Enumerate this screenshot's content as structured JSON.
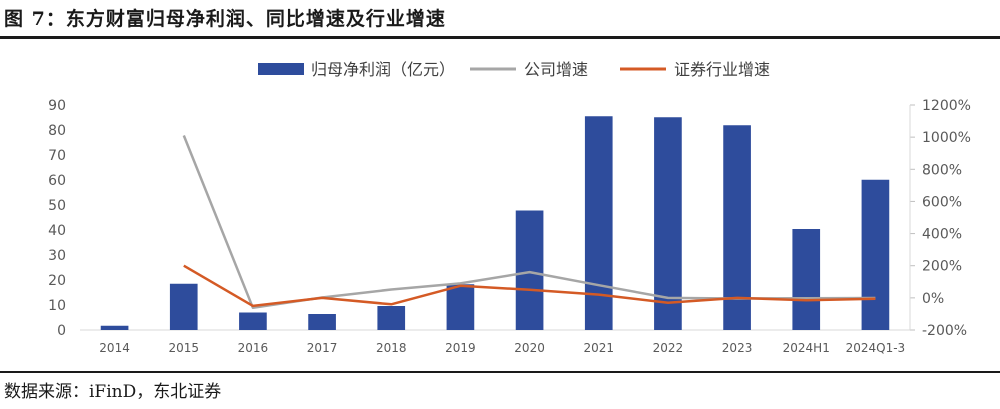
{
  "title": "图 7：东方财富归母净利润、同比增速及行业增速",
  "source": "数据来源：iFinD，东北证券",
  "colors": {
    "bar": "#2E4C9C",
    "company": "#A6A6A6",
    "industry": "#D45A25"
  },
  "chart_data": {
    "type": "bar",
    "categories": [
      "2014",
      "2015",
      "2016",
      "2017",
      "2018",
      "2019",
      "2020",
      "2021",
      "2022",
      "2023",
      "2024H1",
      "2024Q1-3"
    ],
    "ylim": [
      0,
      90
    ],
    "y_ticks": [
      0,
      10,
      20,
      30,
      40,
      50,
      60,
      70,
      80,
      90
    ],
    "y2lim": [
      -200,
      1200
    ],
    "y2_ticks": [
      -200,
      0,
      200,
      400,
      600,
      800,
      1000,
      1200
    ],
    "y2_tick_labels": [
      "-200%",
      "0%",
      "200%",
      "400%",
      "600%",
      "800%",
      "1000%",
      "1200%"
    ],
    "legend_position": "top",
    "series": [
      {
        "name": "归母净利润（亿元）",
        "type": "bar",
        "axis": "left",
        "values": [
          1.7,
          18.5,
          7.0,
          6.4,
          9.6,
          18.3,
          47.8,
          85.5,
          85.1,
          81.9,
          40.4,
          60.1
        ]
      },
      {
        "name": "公司增速",
        "type": "line",
        "axis": "right",
        "values": [
          null,
          1010,
          -62,
          2,
          52,
          90,
          160,
          79,
          0,
          -4,
          -2,
          -1
        ]
      },
      {
        "name": "证券行业增速",
        "type": "line",
        "axis": "right",
        "values": [
          null,
          200,
          -50,
          0,
          -40,
          75,
          50,
          20,
          -30,
          0,
          -15,
          -5
        ]
      }
    ]
  }
}
